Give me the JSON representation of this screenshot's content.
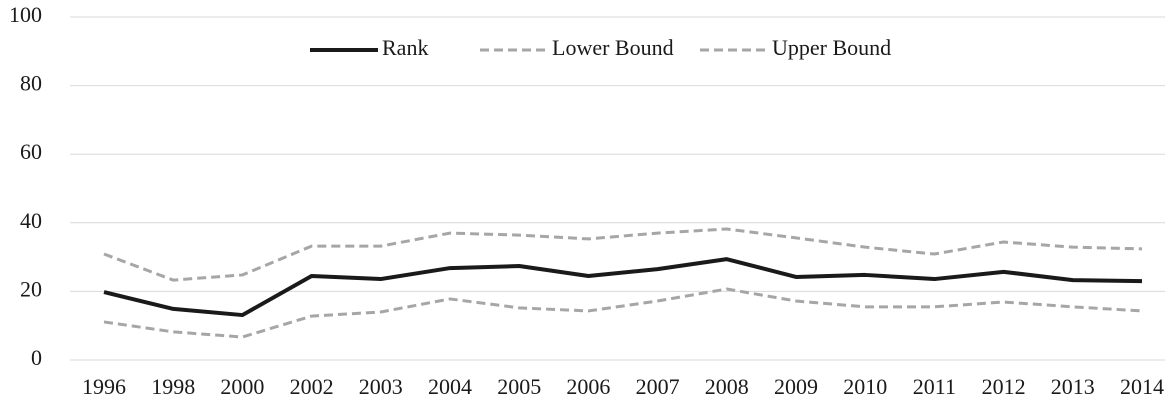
{
  "chart_data": {
    "type": "line",
    "categories": [
      "1996",
      "1998",
      "2000",
      "2002",
      "2003",
      "2004",
      "2005",
      "2006",
      "2007",
      "2008",
      "2009",
      "2010",
      "2011",
      "2012",
      "2013",
      "2014"
    ],
    "series": [
      {
        "name": "Rank",
        "color": "#1a1a1a",
        "dashed": false,
        "values": [
          19.8,
          14.9,
          13.1,
          24.5,
          23.6,
          26.8,
          27.4,
          24.5,
          26.5,
          29.4,
          24.2,
          24.8,
          23.6,
          25.7,
          23.3,
          23.0
        ]
      },
      {
        "name": "Lower Bound",
        "color": "#a6a6a6",
        "dashed": true,
        "values": [
          11.1,
          8.2,
          6.7,
          12.8,
          14.0,
          17.8,
          15.2,
          14.3,
          17.2,
          20.7,
          17.2,
          15.5,
          15.5,
          16.9,
          15.5,
          14.3
        ]
      },
      {
        "name": "Upper Bound",
        "color": "#a6a6a6",
        "dashed": true,
        "values": [
          30.9,
          23.3,
          24.8,
          33.2,
          33.2,
          37.0,
          36.4,
          35.3,
          37.0,
          38.2,
          35.6,
          32.9,
          30.9,
          34.4,
          32.9,
          32.4
        ]
      }
    ],
    "ylim": [
      0,
      100
    ],
    "yticks": [
      0,
      20,
      40,
      60,
      80,
      100
    ],
    "grid": true,
    "legend": "top"
  }
}
